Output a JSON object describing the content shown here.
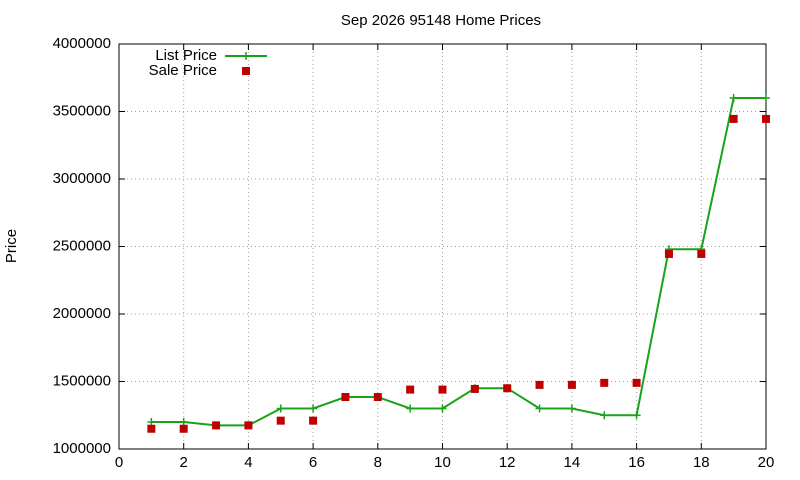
{
  "chart_data": {
    "type": "line",
    "title": "Sep 2026 95148 Home Prices",
    "y_label": "Price",
    "x": [
      1,
      2,
      3,
      4,
      5,
      6,
      7,
      8,
      9,
      10,
      11,
      12,
      13,
      14,
      15,
      16,
      17,
      18,
      19,
      20
    ],
    "series": [
      {
        "name": "List Price",
        "color": "#1aa31a",
        "style": "linespoints",
        "values": [
          1200000,
          1200000,
          1175000,
          1175000,
          1300000,
          1300000,
          1385000,
          1385000,
          1300000,
          1300000,
          1450000,
          1450000,
          1300000,
          1300000,
          1250000,
          1250000,
          2480000,
          2480000,
          3600000,
          3600000
        ]
      },
      {
        "name": "Sale Price",
        "color": "#c00000",
        "style": "points",
        "values": [
          1150000,
          1150000,
          1175000,
          1175000,
          1210000,
          1210000,
          1385000,
          1385000,
          1440000,
          1440000,
          1445000,
          1450000,
          1475000,
          1475000,
          1490000,
          1490000,
          2445000,
          2445000,
          3445000,
          3445000
        ]
      }
    ],
    "xlim": [
      0,
      20
    ],
    "xticks": [
      0,
      2,
      4,
      6,
      8,
      10,
      12,
      14,
      16,
      18,
      20
    ],
    "ylim": [
      1000000,
      4000000
    ],
    "yticks": [
      1000000,
      1500000,
      2000000,
      2500000,
      3000000,
      3500000,
      4000000
    ],
    "grid": true,
    "legend": "top-left"
  }
}
